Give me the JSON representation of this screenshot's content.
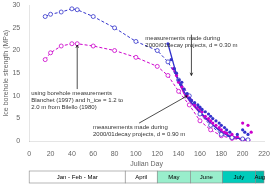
{
  "chart_data": {
    "type": "line",
    "xlabel": "Julian Day",
    "ylabel": "Ice borehole strength (MPa)",
    "xlim": [
      0,
      220
    ],
    "ylim": [
      0,
      30
    ],
    "xticks": [
      0,
      20,
      40,
      60,
      80,
      100,
      120,
      140,
      160,
      180,
      200,
      220
    ],
    "yticks": [
      0,
      5,
      10,
      15,
      20,
      25,
      30
    ],
    "grid": false,
    "series": [
      {
        "type": "line",
        "line_style": "dashed",
        "marker": "open_circle",
        "color": "#3333cc",
        "x": [
          15,
          20,
          30,
          40,
          45,
          60,
          80,
          100,
          120,
          130,
          140,
          150,
          160,
          170,
          180,
          190,
          200,
          205
        ],
        "values": [
          27.5,
          28.0,
          28.5,
          29.2,
          29.0,
          27.5,
          25.0,
          22.0,
          20.0,
          17.5,
          13.5,
          10.0,
          6.0,
          3.5,
          1.5,
          0.8,
          0.5,
          0.3
        ]
      },
      {
        "type": "line",
        "line_style": "dashed",
        "marker": "open_circle",
        "color": "#cc00cc",
        "x": [
          15,
          20,
          30,
          40,
          45,
          60,
          80,
          100,
          120,
          130,
          140,
          150,
          160,
          170,
          180,
          190,
          200,
          205
        ],
        "values": [
          18.0,
          19.5,
          21.0,
          21.5,
          21.5,
          21.0,
          20.0,
          18.5,
          16.5,
          14.5,
          11.0,
          8.0,
          4.5,
          2.5,
          1.2,
          0.6,
          0.3,
          0.2
        ]
      },
      {
        "type": "line",
        "line_style": "solid",
        "marker": "none",
        "color": "#3333cc",
        "x": [
          130,
          140,
          150,
          160,
          170,
          180,
          190,
          200,
          205
        ],
        "values": [
          21.5,
          13.0,
          9.0,
          6.5,
          4.0,
          2.0,
          0.8,
          0.5,
          0.3
        ]
      },
      {
        "type": "line",
        "line_style": "solid",
        "marker": "none",
        "color": "#cc00cc",
        "x": [
          135,
          145,
          155,
          165,
          175,
          185,
          195,
          205
        ],
        "values": [
          16.0,
          10.5,
          7.5,
          5.0,
          3.0,
          1.5,
          0.8,
          0.2
        ]
      },
      {
        "type": "scatter",
        "marker": "circle",
        "color": "#3333cc",
        "x": [
          130,
          133,
          136,
          138,
          140,
          142,
          143,
          145,
          148,
          150,
          152,
          155,
          158,
          160,
          162,
          165,
          168,
          170,
          172,
          175,
          178,
          180,
          183,
          185,
          188,
          195,
          200,
          202,
          205
        ],
        "values": [
          21.5,
          18.0,
          16.0,
          15.0,
          13.5,
          12.5,
          13.0,
          11.5,
          10.5,
          9.5,
          9.0,
          8.5,
          8.0,
          7.5,
          7.0,
          6.5,
          6.0,
          5.5,
          5.0,
          4.5,
          4.0,
          3.5,
          3.0,
          2.5,
          2.0,
          1.5,
          2.5,
          2.0,
          1.5
        ]
      },
      {
        "type": "scatter",
        "marker": "circle",
        "color": "#cc00cc",
        "x": [
          135,
          138,
          140,
          143,
          145,
          148,
          150,
          152,
          155,
          158,
          160,
          162,
          165,
          168,
          170,
          172,
          175,
          178,
          180,
          183,
          185,
          190,
          195,
          200,
          205,
          208
        ],
        "values": [
          16.0,
          14.5,
          13.0,
          12.0,
          11.5,
          10.0,
          9.5,
          9.0,
          8.0,
          7.5,
          7.0,
          6.5,
          5.5,
          5.0,
          4.5,
          4.0,
          3.5,
          3.0,
          2.5,
          2.0,
          1.8,
          1.5,
          1.0,
          4.0,
          3.5,
          2.0
        ]
      }
    ],
    "annotations": [
      {
        "text": "measurements made during\n2000/01decay projects, d = 0.30 m",
        "xy": [
          152,
          14.5
        ],
        "xytext": [
          152,
          23.5
        ]
      },
      {
        "text": "using borehole measurements\nBlanchet (1997) and h_ice = 1.2 to\n2.0 m from Bilello (1980)",
        "xy": [
          45,
          21.2
        ],
        "xytext": [
          45,
          11.5
        ]
      },
      {
        "text": "measurements made during\n2000/01decay projects, d = 0.90 m",
        "xy": [
          148,
          10.0
        ],
        "xytext": [
          103,
          4.0
        ]
      }
    ],
    "bands": [
      {
        "label": "Jan - Feb - Mar",
        "start": 0,
        "end": 90,
        "color": "#ffffff"
      },
      {
        "label": "April",
        "start": 90,
        "end": 120,
        "color": "#ffffff"
      },
      {
        "label": "May",
        "start": 120,
        "end": 151,
        "color": "#99eecc"
      },
      {
        "label": "June",
        "start": 151,
        "end": 181,
        "color": "#99eecc"
      },
      {
        "label": "July",
        "start": 181,
        "end": 212,
        "color": "#00ccbb"
      },
      {
        "label": "Aug",
        "start": 212,
        "end": 220,
        "color": "#00bbaa"
      }
    ]
  }
}
